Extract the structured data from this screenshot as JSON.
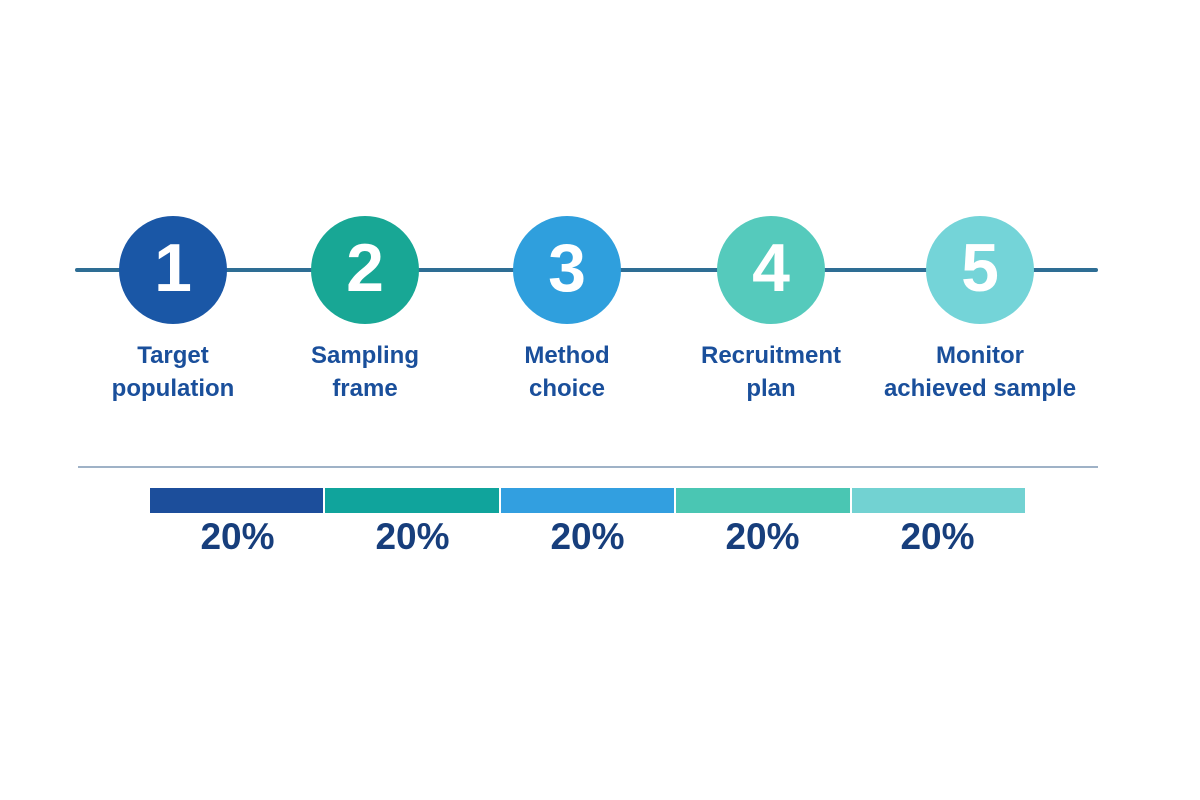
{
  "colors": {
    "background": "#ffffff",
    "timeline_line": "#2e6d94",
    "separator_line": "#8ea5bd",
    "step_label_text": "#1a4f9b",
    "percent_text": "#173e7c",
    "number_text": "#ffffff"
  },
  "steps": [
    {
      "number": "1",
      "label_line1": "Target",
      "label_line2": "population",
      "color": "#1a57a6"
    },
    {
      "number": "2",
      "label_line1": "Sampling",
      "label_line2": "frame",
      "color": "#18a795"
    },
    {
      "number": "3",
      "label_line1": "Method",
      "label_line2": "choice",
      "color": "#2f9fdd"
    },
    {
      "number": "4",
      "label_line1": "Recruitment",
      "label_line2": "plan",
      "color": "#55cabc"
    },
    {
      "number": "5",
      "label_line1": "Monitor",
      "label_line2": "achieved sample",
      "color": "#74d4d8"
    }
  ],
  "bar": {
    "segments": [
      {
        "value": "20%",
        "color": "#1c4e9b"
      },
      {
        "value": "20%",
        "color": "#10a49c"
      },
      {
        "value": "20%",
        "color": "#329fe0"
      },
      {
        "value": "20%",
        "color": "#4ac6b3"
      },
      {
        "value": "20%",
        "color": "#72d2d2"
      }
    ]
  },
  "chart_data": {
    "type": "bar",
    "subtype": "horizontal-stacked",
    "categories": [
      "Target population",
      "Sampling frame",
      "Method choice",
      "Recruitment plan",
      "Monitor achieved sample"
    ],
    "values": [
      20,
      20,
      20,
      20,
      20
    ],
    "unit": "%",
    "data_labels": [
      "20%",
      "20%",
      "20%",
      "20%",
      "20%"
    ],
    "title": "",
    "legend": "none",
    "grid": false
  }
}
